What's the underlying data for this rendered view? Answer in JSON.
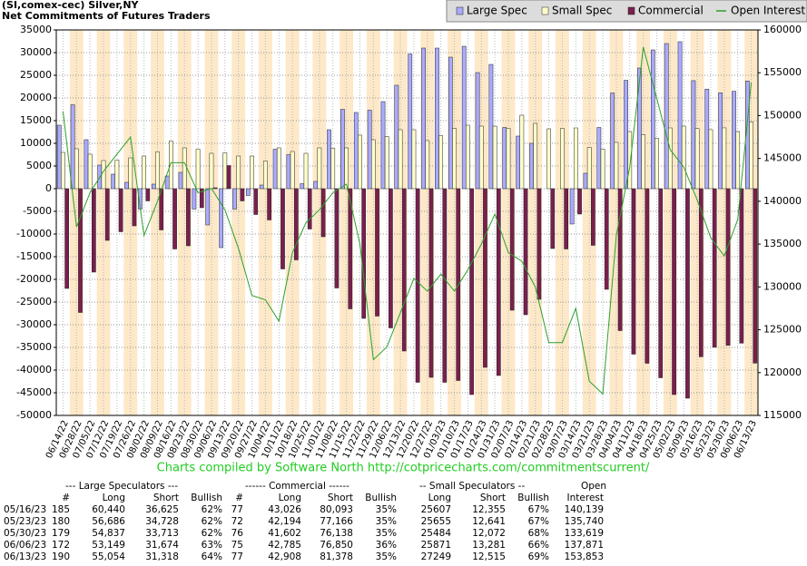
{
  "chart_data": {
    "type": "bar",
    "title": "(SI,comex-cec) Silver,NY",
    "subtitle": "Net Commitments of Futures Traders",
    "caption": "Charts compiled by Software North  http://cotpricecharts.com/commitmentscurrent/",
    "categories": [
      "06/14/22",
      "06/28/22",
      "07/05/22",
      "07/12/22",
      "07/19/22",
      "07/26/22",
      "08/02/22",
      "08/09/22",
      "08/16/22",
      "08/23/22",
      "08/30/22",
      "09/06/22",
      "09/13/22",
      "09/20/22",
      "09/27/22",
      "10/04/22",
      "10/11/22",
      "10/18/22",
      "10/25/22",
      "11/01/22",
      "11/08/22",
      "11/15/22",
      "11/22/22",
      "11/29/22",
      "12/06/22",
      "12/13/22",
      "12/20/22",
      "12/27/22",
      "01/03/23",
      "01/10/23",
      "01/17/23",
      "01/24/23",
      "01/31/23",
      "02/07/23",
      "02/14/23",
      "02/21/23",
      "02/28/23",
      "03/07/23",
      "03/14/23",
      "03/21/23",
      "03/28/23",
      "04/04/23",
      "04/11/23",
      "04/18/23",
      "04/25/23",
      "05/02/23",
      "05/09/23",
      "05/16/23",
      "05/23/23",
      "05/30/23",
      "06/06/23",
      "06/13/23"
    ],
    "series": [
      {
        "name": "Large Spec",
        "color": "#aaaaff",
        "values": [
          14000,
          18500,
          10800,
          5200,
          3200,
          1400,
          -4500,
          1000,
          2800,
          3600,
          -4500,
          -8000,
          -13000,
          -4500,
          -1500,
          800,
          8700,
          7500,
          1100,
          1600,
          13000,
          17500,
          16800,
          17300,
          19200,
          22800,
          29700,
          31000,
          31000,
          29000,
          31400,
          25600,
          27400,
          13500,
          11600,
          10000,
          0,
          0,
          -7800,
          3400,
          13500,
          21100,
          23900,
          26600,
          30600,
          32000,
          32400,
          23815,
          21958,
          21124,
          21475,
          23736
        ]
      },
      {
        "name": "Small Spec",
        "color": "#ffffcc",
        "values": [
          8000,
          8800,
          7600,
          6200,
          6300,
          6800,
          7200,
          8100,
          10500,
          9000,
          8700,
          7800,
          7900,
          7200,
          7200,
          6100,
          9000,
          8200,
          7800,
          9000,
          8900,
          9000,
          11800,
          10800,
          11500,
          13000,
          13000,
          10600,
          11700,
          13300,
          14000,
          13800,
          13800,
          13300,
          16200,
          14400,
          13200,
          13300,
          13400,
          9100,
          8700,
          10200,
          12600,
          11900,
          11100,
          13400,
          13800,
          13252,
          13014,
          13412,
          12590,
          14734
        ]
      },
      {
        "name": "Commercial",
        "color": "#7a1f4d",
        "values": [
          -22000,
          -27300,
          -18400,
          -11400,
          -9500,
          -8200,
          -2700,
          -9100,
          -13300,
          -12600,
          -4200,
          200,
          5100,
          -2700,
          -5700,
          -6900,
          -17700,
          -15700,
          -8900,
          -10600,
          -21900,
          -26500,
          -28600,
          -28100,
          -30700,
          -35800,
          -42700,
          -41600,
          -42700,
          -42300,
          -45400,
          -39400,
          -41200,
          -26800,
          -27800,
          -24400,
          -13200,
          -13300,
          -5600,
          -12500,
          -22200,
          -31300,
          -36500,
          -38500,
          -41700,
          -45400,
          -46200,
          -37067,
          -34972,
          -34536,
          -34065,
          -38470
        ]
      },
      {
        "name": "Open Interest",
        "color": "#2ca02c",
        "type": "line",
        "axis": "y2",
        "values": [
          150500,
          137000,
          141000,
          143500,
          145500,
          147500,
          136000,
          140000,
          144500,
          144500,
          141000,
          141500,
          139000,
          134500,
          129000,
          128500,
          126000,
          134000,
          137500,
          139000,
          141000,
          142000,
          135000,
          121500,
          123000,
          127000,
          131000,
          129500,
          131500,
          129500,
          132000,
          135000,
          138500,
          134000,
          133000,
          130000,
          123500,
          123500,
          127500,
          119000,
          117500,
          136000,
          144000,
          158000,
          152000,
          146000,
          144000,
          140139,
          135740,
          133619,
          137871,
          153853
        ]
      }
    ],
    "ylim": [
      -50000,
      35000
    ],
    "yticks": [
      35000,
      30000,
      25000,
      20000,
      15000,
      10000,
      5000,
      0,
      -5000,
      -10000,
      -15000,
      -20000,
      -25000,
      -30000,
      -35000,
      -40000,
      -45000,
      -50000
    ],
    "y2lim": [
      115000,
      160000
    ],
    "y2ticks": [
      160000,
      155000,
      150000,
      145000,
      140000,
      135000,
      130000,
      125000,
      120000,
      115000
    ],
    "grid": true,
    "legend": "top-right"
  },
  "table": {
    "header": [
      "--- Large Speculators ---",
      "------ Commercial ------",
      "-- Small Speculators --",
      "Open"
    ],
    "columns": [
      "#",
      "Long",
      "Short",
      "Bullish",
      "#",
      "Long",
      "Short",
      "Bullish",
      "Long",
      "Short",
      "Bullish",
      "Interest"
    ],
    "rows": [
      [
        "05/16/23",
        "185",
        "60,440",
        "36,625",
        "62%",
        "77",
        "43,026",
        "80,093",
        "35%",
        "25607",
        "12,355",
        "67%",
        "140,139"
      ],
      [
        "05/23/23",
        "180",
        "56,686",
        "34,728",
        "62%",
        "72",
        "42,194",
        "77,166",
        "35%",
        "25655",
        "12,641",
        "67%",
        "135,740"
      ],
      [
        "05/30/23",
        "179",
        "54,837",
        "33,713",
        "62%",
        "76",
        "41,602",
        "76,138",
        "35%",
        "25484",
        "12,072",
        "68%",
        "133,619"
      ],
      [
        "06/06/23",
        "172",
        "53,149",
        "31,674",
        "63%",
        "75",
        "42,785",
        "76,850",
        "36%",
        "25871",
        "13,281",
        "66%",
        "137,871"
      ],
      [
        "06/13/23",
        "190",
        "55,054",
        "31,318",
        "64%",
        "77",
        "42,908",
        "81,378",
        "35%",
        "27249",
        "12,515",
        "69%",
        "153,853"
      ]
    ]
  }
}
